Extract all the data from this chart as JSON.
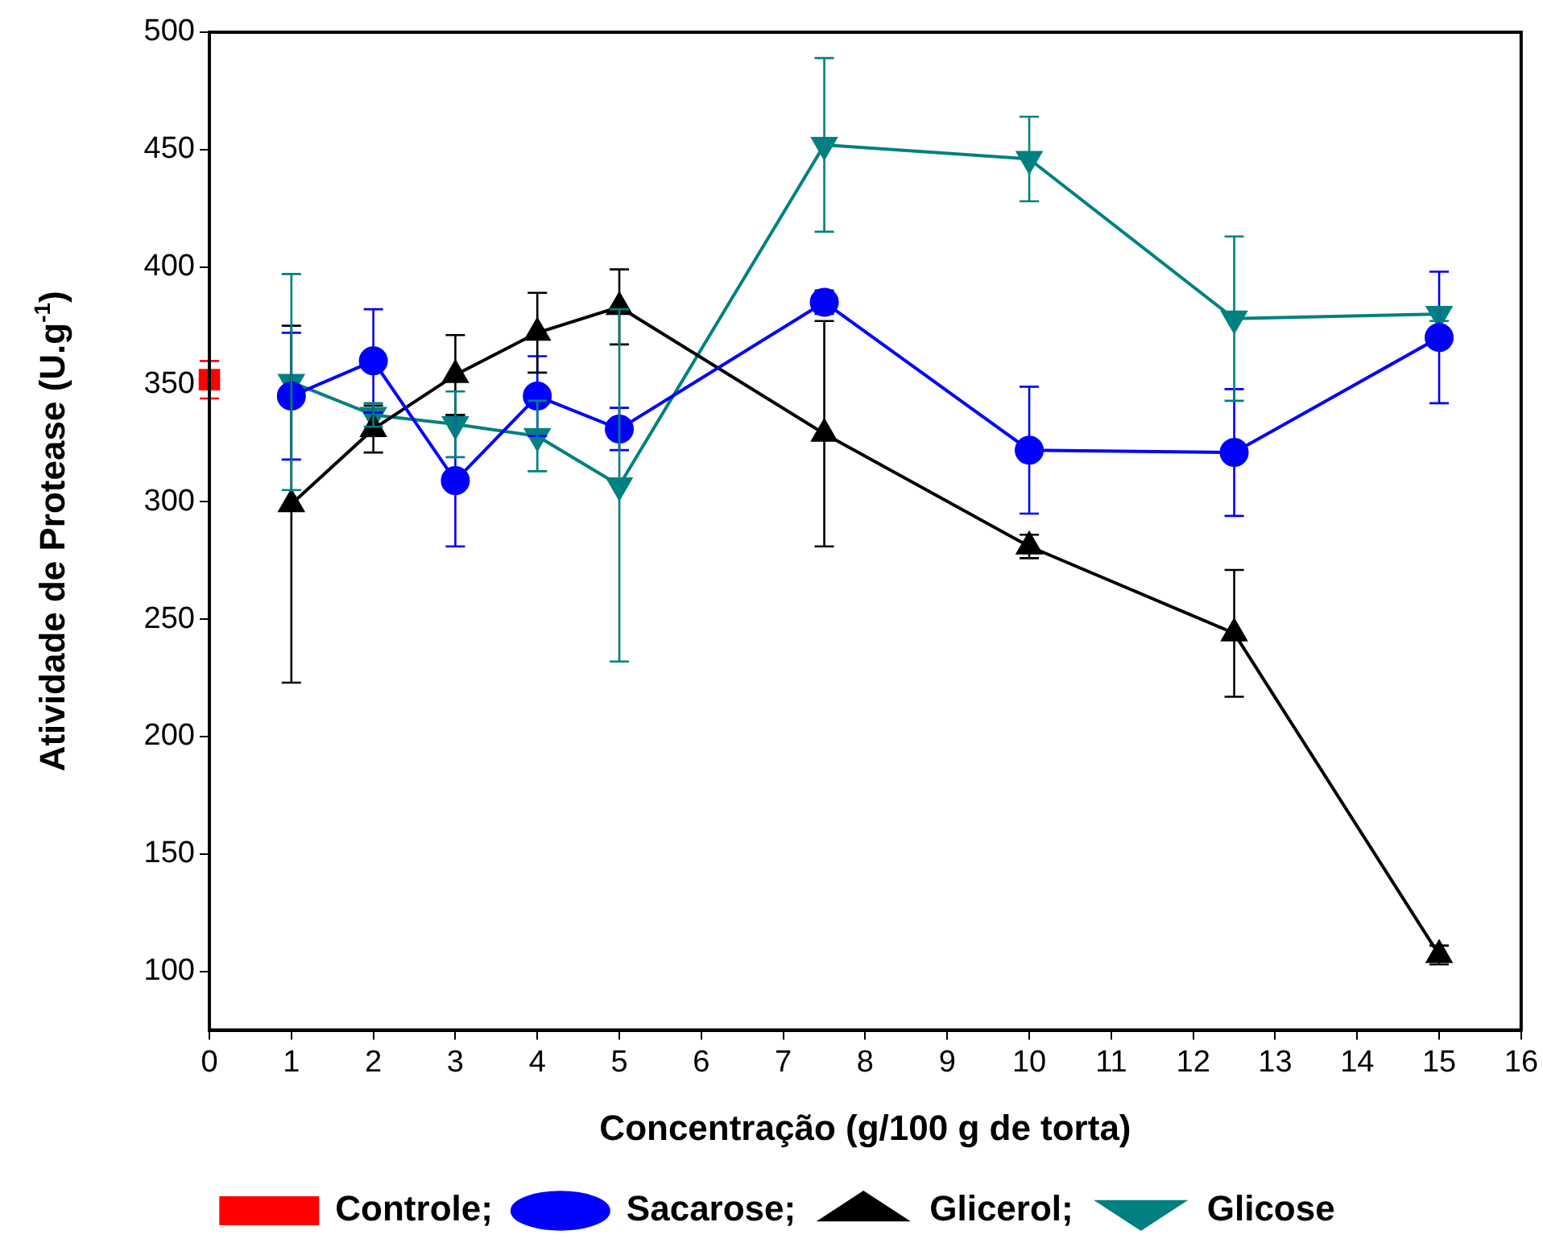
{
  "chart_data": {
    "type": "line",
    "xlabel": "Concentração (g/100 g de torta)",
    "ylabel": "Atividade de Protease (U.g$^{-1}$)",
    "xlim": [
      0,
      16
    ],
    "xticks": [
      0,
      1,
      2,
      3,
      4,
      5,
      6,
      7,
      8,
      9,
      10,
      11,
      12,
      13,
      14,
      15,
      16
    ],
    "ylim": [
      75,
      500
    ],
    "yticks": [
      100,
      150,
      200,
      250,
      300,
      350,
      400,
      450,
      500
    ],
    "grid": false,
    "legend": "bottom",
    "line_style": "solid",
    "series": [
      {
        "name": "Controle;",
        "color": "#ff0000",
        "marker": "square",
        "x": [
          0
        ],
        "values": [
          352
        ],
        "errors": [
          8
        ]
      },
      {
        "name": "Sacarose;",
        "color": "#0000ff",
        "marker": "circle",
        "x": [
          1,
          2,
          3,
          4,
          5,
          7.5,
          10,
          12.5,
          15
        ],
        "values": [
          345,
          360,
          309,
          345,
          331,
          385,
          322,
          321,
          370
        ],
        "errors": [
          27,
          22,
          28,
          17,
          9,
          5,
          27,
          27,
          28
        ]
      },
      {
        "name": "Glicerol;",
        "color": "#000000",
        "marker": "triangle",
        "x": [
          1,
          2,
          3,
          4,
          5,
          7.5,
          10,
          12.5,
          15
        ],
        "values": [
          299,
          331,
          354,
          372,
          383,
          329,
          281,
          244,
          107
        ],
        "errors": [
          76,
          10,
          17,
          17,
          16,
          48,
          5,
          27,
          4
        ]
      },
      {
        "name": "Glicose",
        "color": "#008080",
        "marker": "triangle_down",
        "x": [
          1,
          2,
          3,
          4,
          5,
          7.5,
          10,
          12.5,
          15
        ],
        "values": [
          351,
          337,
          333,
          328,
          307,
          452,
          446,
          378,
          380
        ],
        "errors": [
          46,
          5,
          14,
          15,
          75,
          37,
          18,
          35,
          3
        ]
      }
    ]
  }
}
